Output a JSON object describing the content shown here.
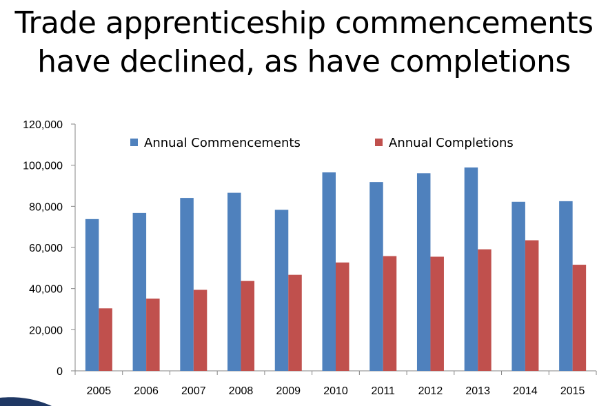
{
  "title": {
    "line1": "Trade apprenticeship commencements",
    "line2": "have declined, as have completions"
  },
  "chart_data": {
    "type": "bar",
    "title": "Trade apprenticeship commencements have declined, as have completions",
    "xlabel": "",
    "ylabel": "",
    "categories": [
      "2005",
      "2006",
      "2007",
      "2008",
      "2009",
      "2010",
      "2011",
      "2012",
      "2013",
      "2014",
      "2015"
    ],
    "series": [
      {
        "name": "Annual Commencements",
        "color": "#4F81BD",
        "values": [
          73800,
          76800,
          84100,
          86600,
          78300,
          96500,
          91800,
          96100,
          98900,
          82200,
          82500
        ]
      },
      {
        "name": "Annual Completions",
        "color": "#C0504D",
        "values": [
          30400,
          35100,
          39400,
          43700,
          46700,
          52700,
          55800,
          55500,
          59100,
          63500,
          51600
        ]
      }
    ],
    "ylim": [
      0,
      120000
    ],
    "yticks": [
      "0",
      "20,000",
      "40,000",
      "60,000",
      "80,000",
      "100,000",
      "120,000"
    ],
    "legend_position": "top",
    "grid": false
  },
  "decor": {
    "swoosh_color": "#1F3864"
  }
}
